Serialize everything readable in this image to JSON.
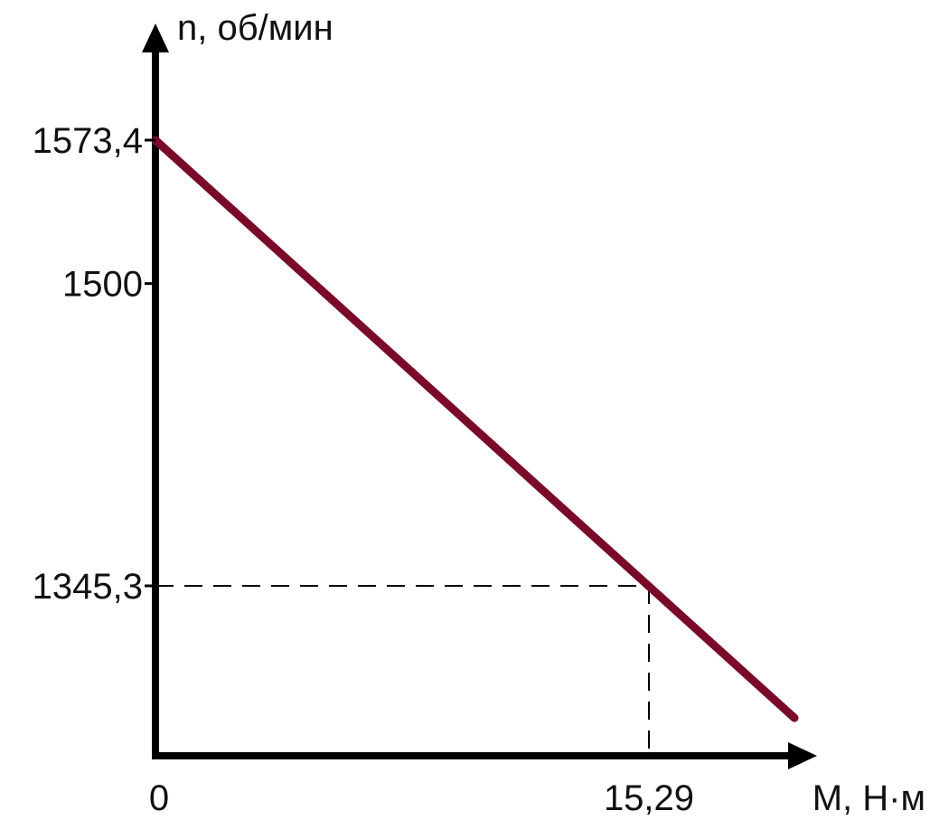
{
  "chart_data": {
    "type": "line",
    "title": "",
    "xlabel": "M, Н·м",
    "ylabel": "n, об/мин",
    "x_ticks": [
      {
        "value": 0,
        "label": "0"
      },
      {
        "value": 15.29,
        "label": "15,29"
      }
    ],
    "y_ticks": [
      {
        "value": 1573.4,
        "label": "1573,4"
      },
      {
        "value": 1500,
        "label": "1500"
      },
      {
        "value": 1345.3,
        "label": "1345,3"
      }
    ],
    "series": [
      {
        "color": "#7a0a2a",
        "points": [
          {
            "x": 0,
            "y": 1573.4
          },
          {
            "x": 19.8,
            "y": 1277.7
          }
        ]
      }
    ],
    "reference_point": {
      "x": 15.29,
      "y": 1345.3
    },
    "grid": false,
    "legend": "none"
  }
}
